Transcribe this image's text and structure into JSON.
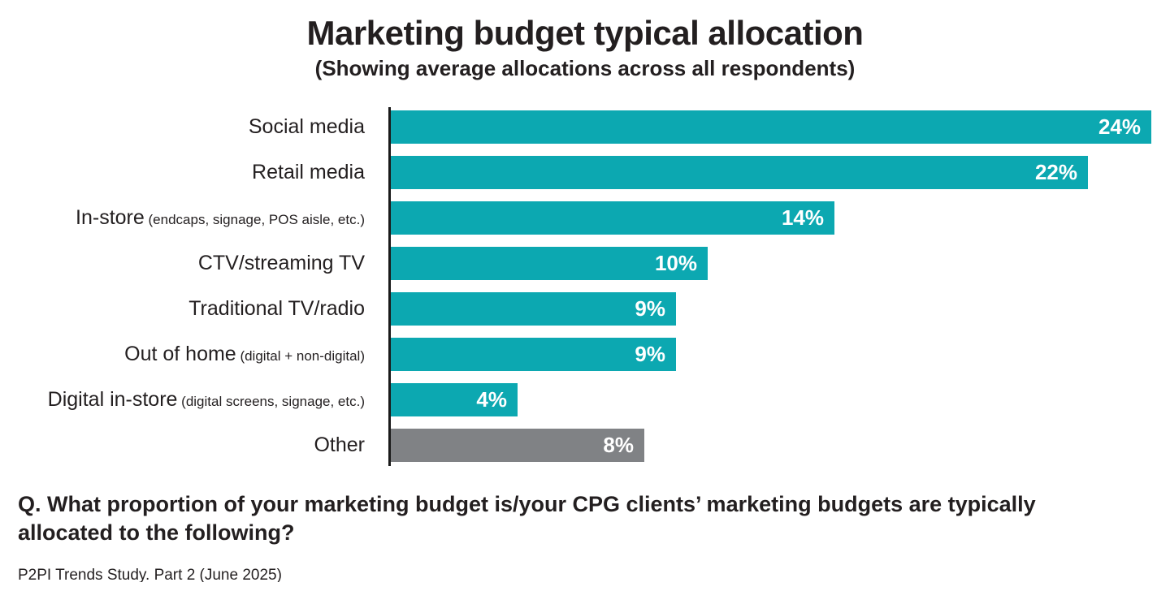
{
  "title": "Marketing budget typical allocation",
  "subtitle": "(Showing average allocations across all respondents)",
  "question": {
    "line1": "Q. What proportion of your marketing budget is/your CPG clients’ marketing budgets are typically",
    "line2": "allocated to the following?"
  },
  "source": "P2PI Trends Study. Part 2 (June 2025)",
  "colors": {
    "bar_teal": "#0ca8b1",
    "bar_gray": "#808285",
    "text_dark": "#231f20",
    "value_label_text": "#ffffff",
    "axis_line": "#1a1a1a"
  },
  "chart_data": {
    "type": "bar",
    "orientation": "horizontal",
    "title": "Marketing budget typical allocation",
    "subtitle": "(Showing average allocations across all respondents)",
    "value_unit": "%",
    "xlim": [
      0,
      24.6
    ],
    "grid": false,
    "legend": false,
    "categories": [
      "Social media",
      "Retail media",
      "In-store (endcaps, signage, POS aisle, etc.)",
      "CTV/streaming TV",
      "Traditional TV/radio",
      "Out of home (digital + non-digital)",
      "Digital in-store (digital screens, signage, etc.)",
      "Other"
    ],
    "values": [
      24,
      22,
      14,
      10,
      9,
      9,
      4,
      8
    ],
    "rows": [
      {
        "label": "Social media",
        "sublabel": "",
        "value": 24,
        "value_label": "24%",
        "color": "teal"
      },
      {
        "label": "Retail media",
        "sublabel": "",
        "value": 22,
        "value_label": "22%",
        "color": "teal"
      },
      {
        "label": "In-store",
        "sublabel": "(endcaps, signage, POS aisle, etc.)",
        "value": 14,
        "value_label": "14%",
        "color": "teal"
      },
      {
        "label": "CTV/streaming TV",
        "sublabel": "",
        "value": 10,
        "value_label": "10%",
        "color": "teal"
      },
      {
        "label": "Traditional TV/radio",
        "sublabel": "",
        "value": 9,
        "value_label": "9%",
        "color": "teal"
      },
      {
        "label": "Out of home",
        "sublabel": "(digital + non-digital)",
        "value": 9,
        "value_label": "9%",
        "color": "teal"
      },
      {
        "label": "Digital in-store",
        "sublabel": "(digital screens, signage, etc.)",
        "value": 4,
        "value_label": "4%",
        "color": "teal"
      },
      {
        "label": "Other",
        "sublabel": "",
        "value": 8,
        "value_label": "8%",
        "color": "gray"
      }
    ]
  }
}
